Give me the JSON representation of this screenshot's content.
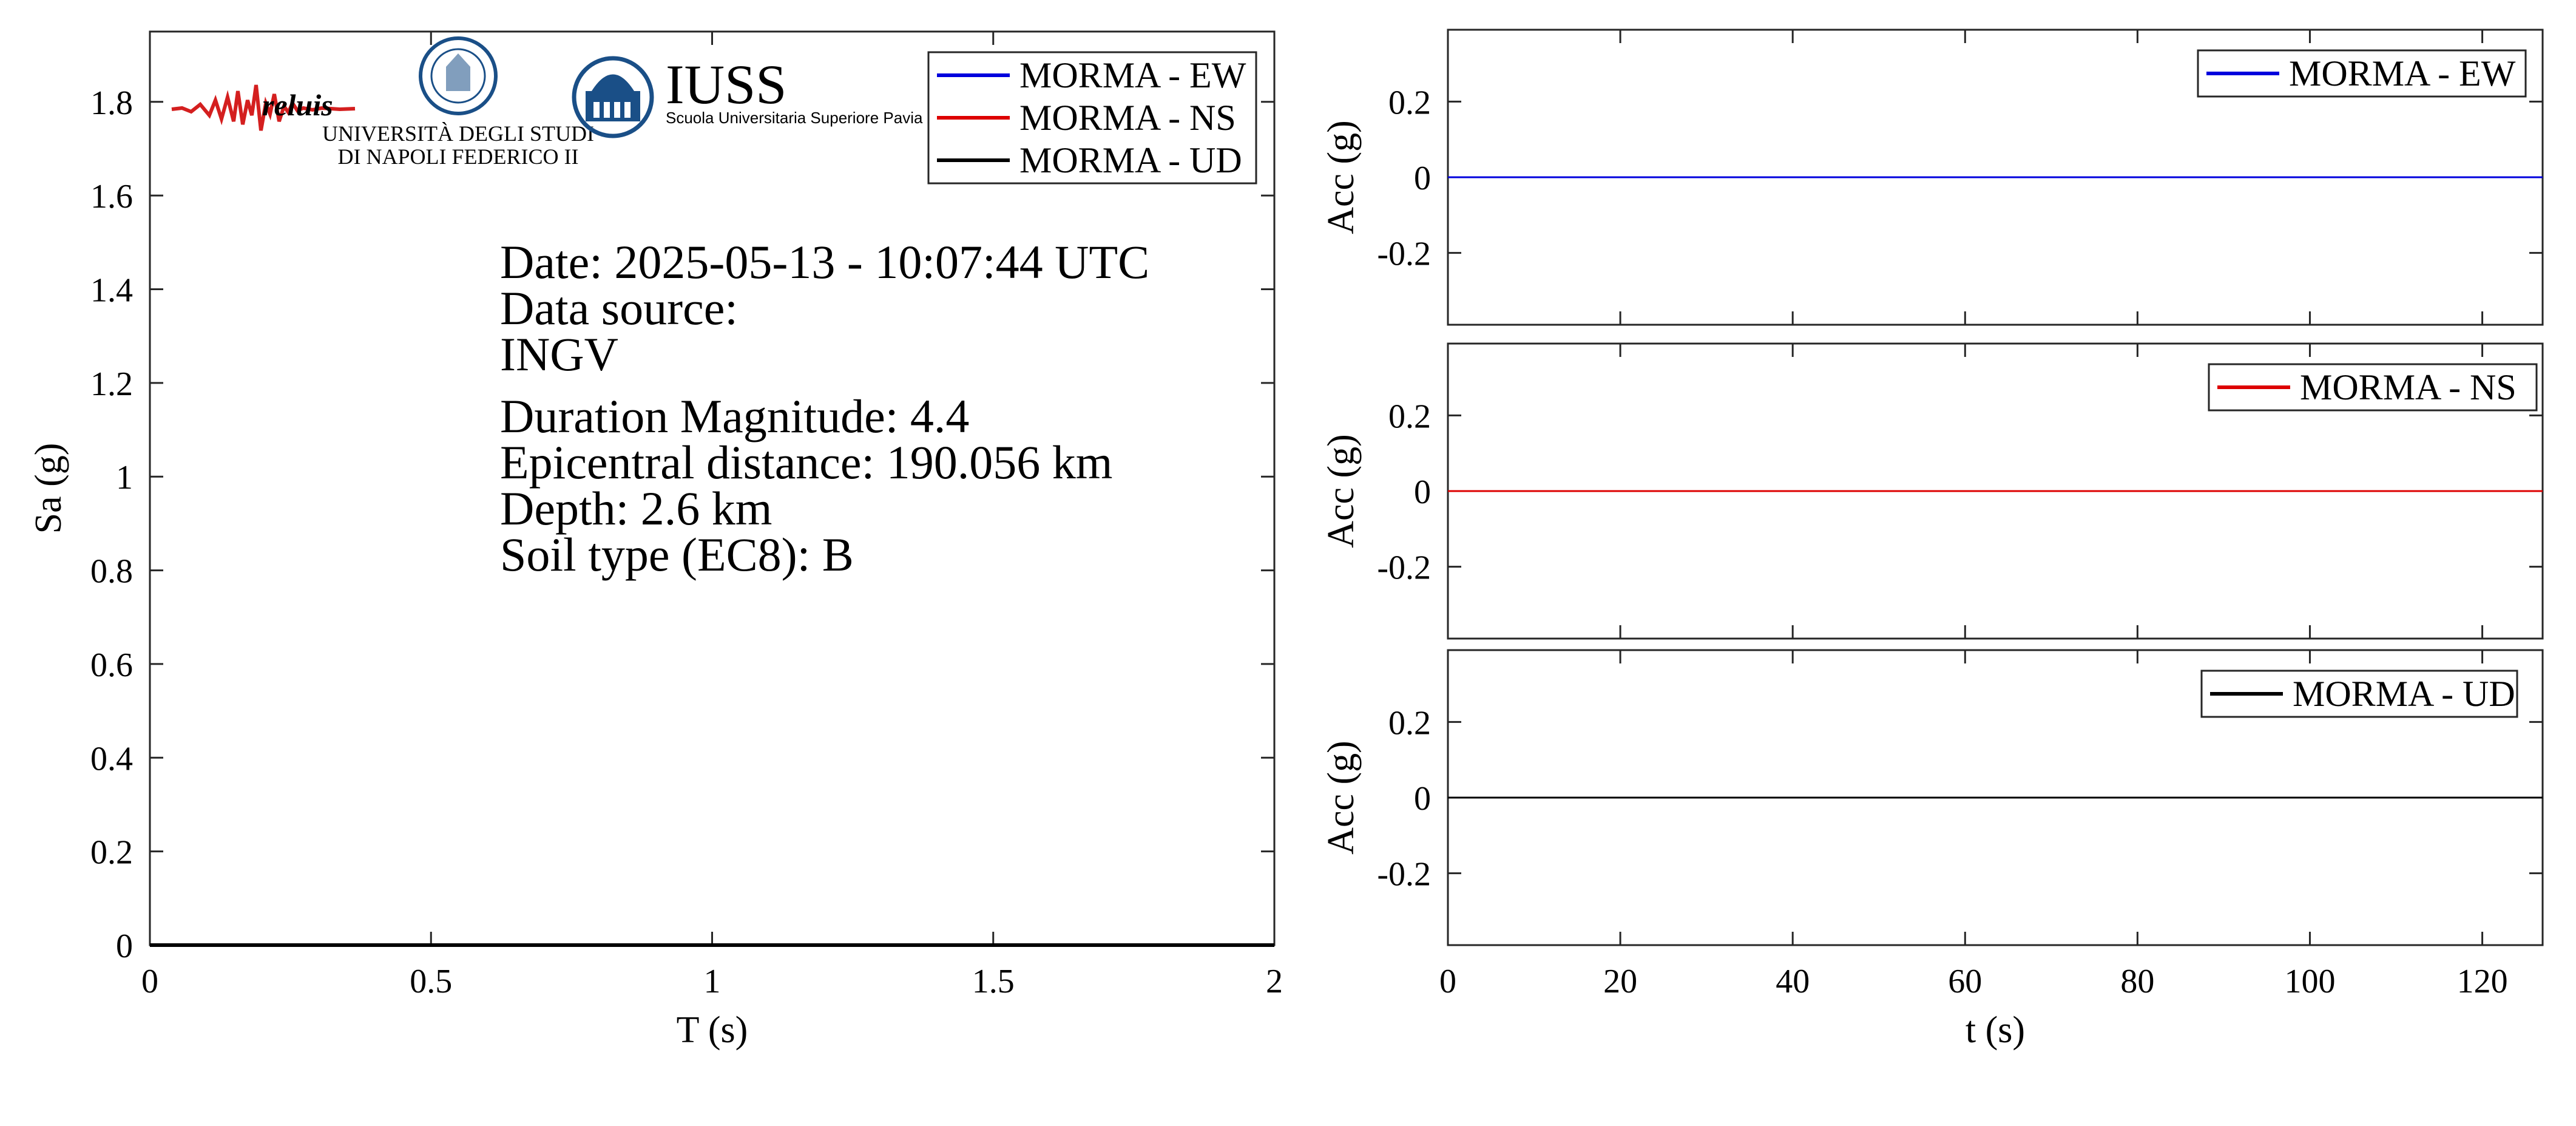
{
  "colors": {
    "ew": "#0000dd",
    "ns": "#dd0000",
    "ud": "#000000",
    "axis": "#262626",
    "logo_blue": "#1a4f87",
    "logo_navy": "#0d2a5a"
  },
  "logos": {
    "reluis": "reluis",
    "unina_line1": "UNIVERSITÀ DEGLI STUDI",
    "unina_line2": "DI NAPOLI FEDERICO II",
    "iuss_title": "IUSS",
    "iuss_subtitle": "Scuola Universitaria Superiore Pavia"
  },
  "info": {
    "date": "Date: 2025-05-13 - 10:07:44 UTC",
    "source_label": "Data source:",
    "source": "INGV",
    "magnitude": "Duration Magnitude: 4.4",
    "distance": "Epicentral distance: 190.056 km",
    "depth": "Depth: 2.6 km",
    "soil": "Soil type (EC8): B"
  },
  "chart_data": [
    {
      "type": "line",
      "xlabel": "T (s)",
      "ylabel": "Sa (g)",
      "xlim": [
        0,
        2
      ],
      "ylim": [
        0,
        1.95
      ],
      "xticks": [
        0,
        0.5,
        1,
        1.5,
        2
      ],
      "xtick_labels": [
        "0",
        "0.5",
        "1",
        "1.5",
        "2"
      ],
      "yticks": [
        0,
        0.2,
        0.4,
        0.6,
        0.8,
        1,
        1.2,
        1.4,
        1.6,
        1.8
      ],
      "ytick_labels": [
        "0",
        "0.2",
        "0.4",
        "0.6",
        "0.8",
        "1",
        "1.2",
        "1.4",
        "1.6",
        "1.8"
      ],
      "grid": false,
      "legend_position": "top-right",
      "series": [
        {
          "name": "MORMA - EW",
          "color_key": "ew",
          "x": [
            0,
            2
          ],
          "y": [
            0,
            0
          ]
        },
        {
          "name": "MORMA - NS",
          "color_key": "ns",
          "x": [
            0,
            2
          ],
          "y": [
            0,
            0
          ]
        },
        {
          "name": "MORMA - UD",
          "color_key": "ud",
          "x": [
            0,
            2
          ],
          "y": [
            0,
            0
          ]
        }
      ]
    },
    {
      "type": "line",
      "ylabel": "Acc (g)",
      "xlim": [
        0,
        127
      ],
      "ylim": [
        -0.39,
        0.39
      ],
      "yticks": [
        -0.2,
        0,
        0.2
      ],
      "ytick_labels": [
        "-0.2",
        "0",
        "0.2"
      ],
      "grid": false,
      "legend_position": "top-right",
      "series": [
        {
          "name": "MORMA - EW",
          "color_key": "ew",
          "x": [
            0,
            127
          ],
          "y": [
            0,
            0
          ]
        }
      ]
    },
    {
      "type": "line",
      "ylabel": "Acc (g)",
      "xlim": [
        0,
        127
      ],
      "ylim": [
        -0.39,
        0.39
      ],
      "yticks": [
        -0.2,
        0,
        0.2
      ],
      "ytick_labels": [
        "-0.2",
        "0",
        "0.2"
      ],
      "grid": false,
      "legend_position": "top-right",
      "series": [
        {
          "name": "MORMA - NS",
          "color_key": "ns",
          "x": [
            0,
            127
          ],
          "y": [
            0,
            0
          ]
        }
      ]
    },
    {
      "type": "line",
      "xlabel": "t (s)",
      "ylabel": "Acc (g)",
      "xlim": [
        0,
        127
      ],
      "ylim": [
        -0.39,
        0.39
      ],
      "xticks": [
        0,
        20,
        40,
        60,
        80,
        100,
        120
      ],
      "xtick_labels": [
        "0",
        "20",
        "40",
        "60",
        "80",
        "100",
        "120"
      ],
      "yticks": [
        -0.2,
        0,
        0.2
      ],
      "ytick_labels": [
        "-0.2",
        "0",
        "0.2"
      ],
      "grid": false,
      "legend_position": "top-right",
      "series": [
        {
          "name": "MORMA - UD",
          "color_key": "ud",
          "x": [
            0,
            127
          ],
          "y": [
            0,
            0
          ]
        }
      ]
    }
  ]
}
